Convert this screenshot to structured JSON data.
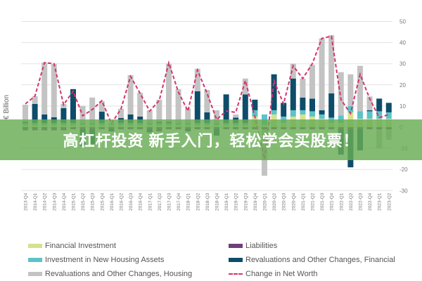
{
  "banner": {
    "text": "高杠杆投资 新手入门，轻松学会买股票！"
  },
  "chart_data": {
    "type": "bar",
    "stacked": true,
    "ylabel": "€ Billion",
    "ylim": [
      -30,
      50
    ],
    "yticks": [
      50,
      40,
      30,
      20,
      10,
      0,
      -10,
      -20,
      -30
    ],
    "grid": true,
    "y_axis_side": "right",
    "legend_position": "bottom",
    "categories": [
      "2013-Q4",
      "2014-Q1",
      "2014-Q2",
      "2014-Q3",
      "2014-Q4",
      "2015-Q1",
      "2015-Q2",
      "2015-Q3",
      "2015-Q4",
      "2016-Q1",
      "2016-Q2",
      "2016-Q3",
      "2016-Q4",
      "2017-Q1",
      "2017-Q2",
      "2017-Q3",
      "2017-Q4",
      "2018-Q1",
      "2018-Q2",
      "2018-Q3",
      "2018-Q4",
      "2019-Q1",
      "2019-Q2",
      "2019-Q3",
      "2019-Q4",
      "2020-Q1",
      "2020-Q2",
      "2020-Q3",
      "2020-Q4",
      "2021-Q1",
      "2021-Q2",
      "2021-Q3",
      "2021-Q4",
      "2022-Q1",
      "2022-Q2",
      "2022-Q3",
      "2022-Q4",
      "2023-Q1",
      "2023-Q2"
    ],
    "series": [
      {
        "name": "Financial Investment",
        "type": "bar",
        "color": "#d5e28c",
        "values": [
          1,
          1,
          1,
          1,
          1,
          1,
          1,
          1,
          1,
          1,
          1,
          1,
          1,
          1,
          1,
          1,
          1,
          1,
          1,
          1,
          1,
          1,
          1,
          1,
          5,
          1,
          6,
          2,
          5,
          6,
          5,
          4,
          2,
          2,
          7,
          4,
          4,
          4,
          4
        ]
      },
      {
        "name": "Liabilities",
        "type": "bar",
        "color": "#6e3f7c",
        "values": [
          -1.5,
          -1.5,
          -1.5,
          -1.5,
          -1.5,
          -1,
          -1,
          -1,
          -1,
          -1,
          -1,
          -1,
          -1,
          -1,
          -2,
          -1,
          -1,
          -1,
          -1,
          -1,
          -1,
          -1,
          -1,
          -1,
          -1,
          -1,
          -1,
          -1,
          -1,
          -1,
          -1,
          -1,
          -1,
          -1,
          -1,
          -1,
          -1,
          -1,
          -1
        ]
      },
      {
        "name": "Investment in New Housing Assets",
        "type": "bar",
        "color": "#5cc3c8",
        "values": [
          1,
          1,
          1,
          1,
          1,
          1,
          1,
          1,
          1,
          0.5,
          1,
          1,
          1,
          1,
          1,
          1,
          1,
          1,
          1,
          1,
          1,
          1,
          1,
          1,
          3,
          5,
          2,
          3,
          3,
          2,
          2.5,
          2,
          2.5,
          3.5,
          3,
          3.5,
          3.5,
          3.5,
          3
        ]
      },
      {
        "name": "Revaluations and Other Changes, Financial",
        "type": "bar",
        "color": "#0e4d6a",
        "values": [
          0.5,
          9,
          4,
          2.7,
          7,
          16,
          -8,
          -7,
          5.3,
          -1,
          2.3,
          4,
          3,
          -1.5,
          0.5,
          0.5,
          0,
          -1,
          15,
          5,
          -3,
          13.5,
          2.5,
          13.5,
          5,
          0,
          17,
          6.5,
          15,
          6,
          6,
          2,
          11.5,
          -12,
          -18,
          -10,
          0.5,
          6,
          4.5
        ]
      },
      {
        "name": "Revaluations and Other Changes, Housing",
        "type": "bar",
        "color": "#c3c3c3",
        "values": [
          8.1,
          3.6,
          24.6,
          25.3,
          2,
          0,
          8,
          12,
          5,
          0.5,
          4.4,
          18.6,
          11.3,
          6,
          10.5,
          27.5,
          16,
          7,
          10.6,
          10.6,
          6,
          0,
          1.5,
          7.5,
          0,
          -22,
          0,
          0,
          7,
          9,
          16,
          34,
          27.5,
          20.5,
          15,
          21.5,
          6.5,
          -9,
          -5
        ]
      },
      {
        "name": "Change in Net Worth",
        "type": "line",
        "color": "#d6336c",
        "dashed": true,
        "values": [
          11,
          14.6,
          30.5,
          30,
          10.6,
          17,
          5.4,
          8.3,
          12.5,
          1.7,
          8.6,
          24,
          16,
          7.6,
          12.6,
          30.4,
          16.6,
          7.6,
          27,
          16,
          3.6,
          7.6,
          7,
          22,
          5,
          -15,
          22,
          11,
          29,
          23,
          30,
          42,
          43,
          13,
          6.5,
          25,
          13.5,
          4.5,
          6
        ]
      }
    ]
  }
}
